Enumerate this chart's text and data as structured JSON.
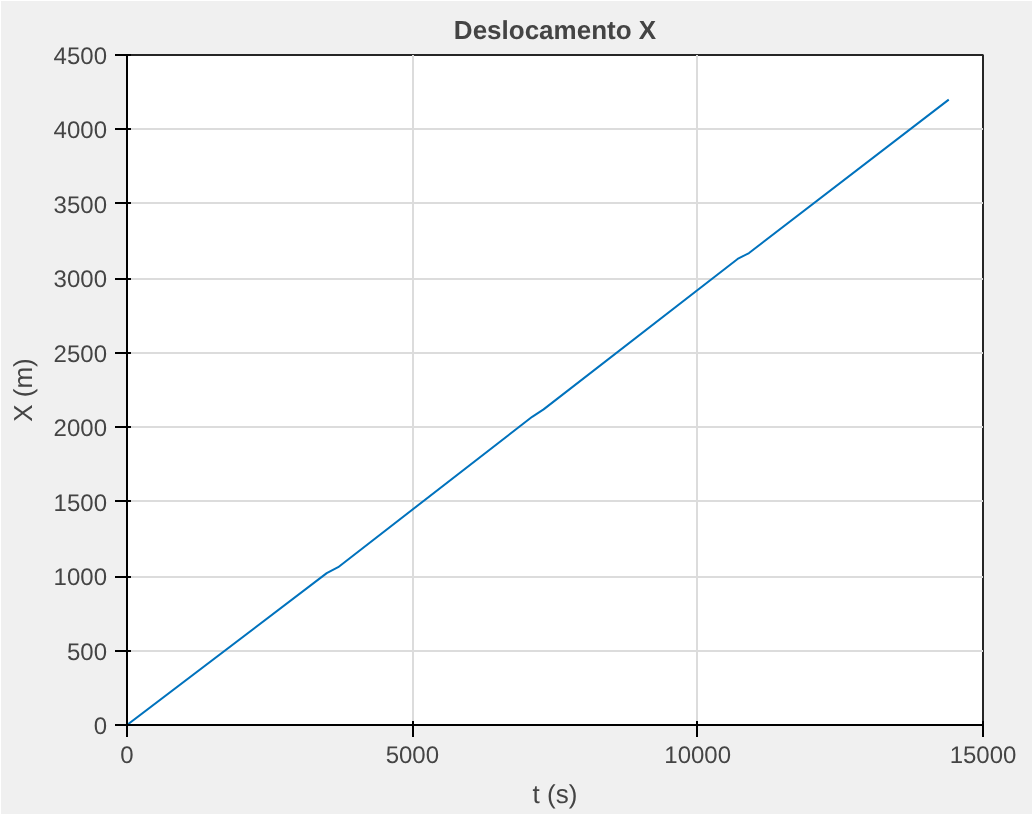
{
  "chart_data": {
    "type": "line",
    "title": "Deslocamento X",
    "xlabel": "t (s)",
    "ylabel": "X (m)",
    "x": [
      0,
      3500,
      3700,
      7100,
      7300,
      10700,
      10900,
      14400
    ],
    "series": [
      {
        "color": "#0072bd",
        "values": [
          0,
          1020,
          1060,
          2070,
          2120,
          3130,
          3170,
          4200
        ]
      }
    ],
    "xlim": [
      0,
      15000
    ],
    "xticks": [
      0,
      5000,
      10000,
      15000
    ],
    "ylim": [
      0,
      4500
    ],
    "yticks": [
      0,
      500,
      1000,
      1500,
      2000,
      2500,
      3000,
      3500,
      4000,
      4500
    ],
    "grid": true
  }
}
